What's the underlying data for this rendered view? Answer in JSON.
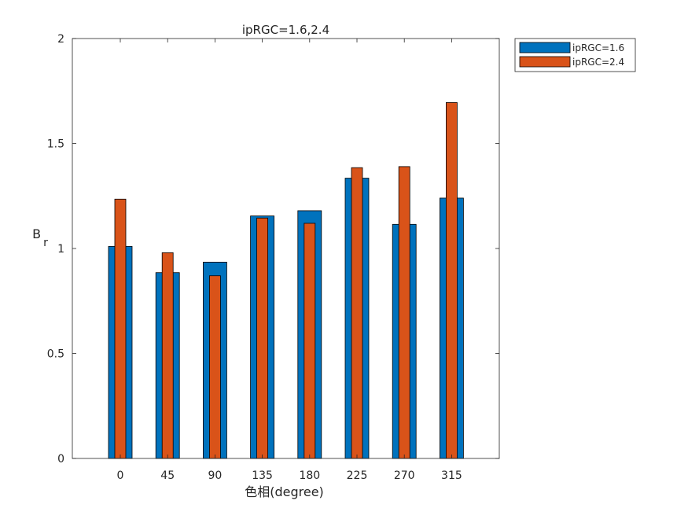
{
  "chart_data": {
    "type": "bar",
    "title": "ipRGC=1.6,2.4",
    "xlabel": "色相(degree)",
    "ylabel": "B",
    "ylabel_subscript": "r",
    "categories": [
      "0",
      "45",
      "90",
      "135",
      "180",
      "225",
      "270",
      "315"
    ],
    "ylim": [
      0,
      2
    ],
    "yticks": [
      "0",
      "0.5",
      "1",
      "1.5",
      "2"
    ],
    "grid": false,
    "legend_position": "outside-top-right",
    "series": [
      {
        "name": "ipRGC=1.6",
        "color": "#0072BD",
        "values": [
          1.01,
          0.885,
          0.935,
          1.155,
          1.18,
          1.335,
          1.115,
          1.24
        ]
      },
      {
        "name": "ipRGC=2.4",
        "color": "#D95319",
        "values": [
          1.235,
          0.98,
          0.87,
          1.145,
          1.12,
          1.385,
          1.39,
          1.695
        ]
      }
    ]
  }
}
